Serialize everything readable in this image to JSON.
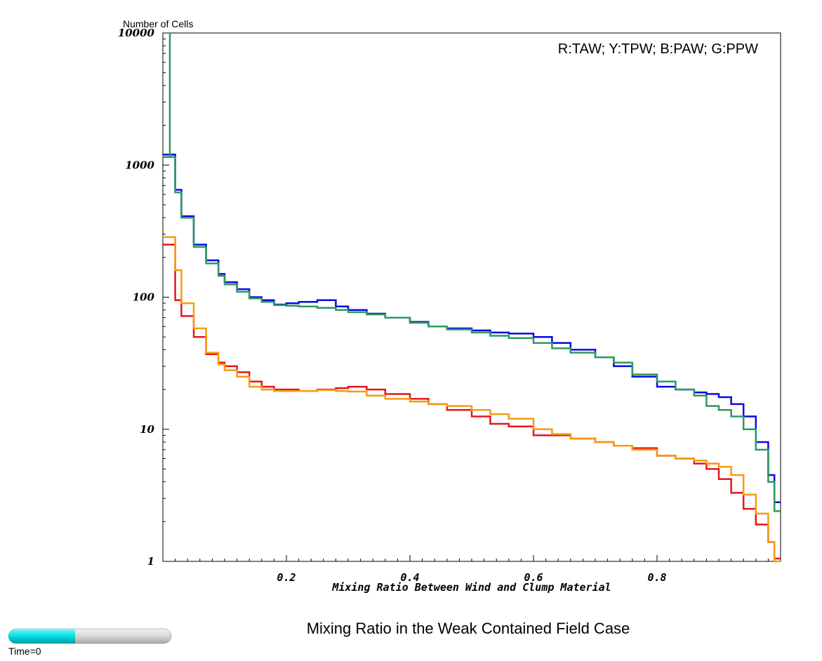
{
  "chart_data": {
    "type": "line",
    "step": true,
    "title": "Mixing Ratio in the Weak Contained Field Case",
    "ylabel": "Number of Cells",
    "xlabel": "Mixing Ratio Between Wind and Clump Material",
    "legend_text": "R:TAW; Y:TPW; B:PAW; G:PPW",
    "legend_position": "top-right",
    "y_scale": "log",
    "xlim": [
      0.0,
      1.0
    ],
    "ylim": [
      1,
      10000
    ],
    "grid": false,
    "x_tick_labels": [
      "0.2",
      "0.4",
      "0.6",
      "0.8"
    ],
    "x_ticks": [
      0.2,
      0.4,
      0.6,
      0.8
    ],
    "y_tick_labels": [
      "1",
      "10",
      "100",
      "1000",
      "10000"
    ],
    "y_ticks": [
      1,
      10,
      100,
      1000,
      10000
    ],
    "x": [
      0.0,
      0.02,
      0.03,
      0.05,
      0.07,
      0.09,
      0.1,
      0.12,
      0.14,
      0.16,
      0.18,
      0.2,
      0.22,
      0.25,
      0.28,
      0.3,
      0.33,
      0.36,
      0.4,
      0.43,
      0.46,
      0.5,
      0.53,
      0.56,
      0.6,
      0.63,
      0.66,
      0.7,
      0.73,
      0.76,
      0.8,
      0.83,
      0.86,
      0.88,
      0.9,
      0.92,
      0.94,
      0.96,
      0.98,
      0.99
    ],
    "series": [
      {
        "name": "TAW",
        "color": "#e8141b",
        "values": [
          250,
          95,
          72,
          50,
          37,
          32,
          30,
          27,
          23,
          21,
          20,
          20,
          19.5,
          20,
          20.5,
          21,
          20,
          18.5,
          17,
          15.5,
          14,
          12.5,
          11,
          10.5,
          9,
          9,
          8.5,
          8,
          7.5,
          7.2,
          6.3,
          6,
          5.5,
          5,
          4.2,
          3.3,
          2.5,
          1.9,
          1.4,
          1.05
        ]
      },
      {
        "name": "TPW",
        "color": "#f59c12",
        "values": [
          285,
          160,
          90,
          58,
          38,
          31,
          28,
          25,
          21,
          20,
          19.5,
          19.5,
          19.5,
          19.8,
          19.5,
          19.3,
          18,
          17,
          16.2,
          15.5,
          15,
          14,
          13,
          12,
          10,
          9.2,
          8.5,
          8,
          7.5,
          7,
          6.3,
          6,
          5.8,
          5.5,
          5.2,
          4.5,
          3.2,
          2.3,
          1.4,
          1.0
        ]
      },
      {
        "name": "PAW",
        "color": "#0a0ae0",
        "values": [
          1200,
          650,
          410,
          250,
          190,
          150,
          130,
          115,
          100,
          95,
          88,
          90,
          92,
          95,
          85,
          80,
          75,
          70,
          65,
          60,
          58,
          56,
          54,
          53,
          50,
          45,
          40,
          35,
          30,
          25,
          21,
          20,
          19,
          18.5,
          17.5,
          15.5,
          12.5,
          8,
          4.5,
          2.8
        ]
      },
      {
        "name": "PPW",
        "color": "#2e9960",
        "values": [
          1150,
          620,
          400,
          240,
          180,
          145,
          125,
          110,
          98,
          92,
          87,
          86,
          85,
          83,
          80,
          77,
          74,
          70,
          64,
          60,
          57,
          54,
          51,
          49,
          45,
          41,
          38,
          35,
          32,
          26,
          23,
          20,
          18,
          15,
          14,
          12.5,
          10,
          7,
          4,
          2.4
        ]
      }
    ]
  },
  "time_slider": {
    "label": "Time=0",
    "progress": 0.41,
    "fill_color": "#00e5e8",
    "track_color": "#dcdcdc"
  }
}
